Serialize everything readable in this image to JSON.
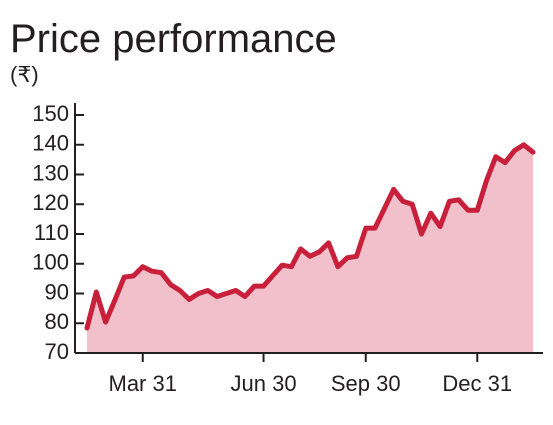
{
  "chart_data": {
    "type": "area",
    "title": "Price performance",
    "subtitle": "(₹)",
    "categories": [
      null,
      null,
      null,
      null,
      null,
      null,
      "Mar 31",
      null,
      null,
      null,
      null,
      null,
      null,
      null,
      null,
      null,
      null,
      null,
      null,
      "Jun 30",
      null,
      null,
      null,
      null,
      null,
      null,
      null,
      null,
      null,
      null,
      "Sep 30",
      null,
      null,
      null,
      null,
      null,
      null,
      null,
      null,
      null,
      null,
      null,
      "Dec 31",
      null,
      null,
      null,
      null,
      null,
      null
    ],
    "values": [
      78.4,
      90.5,
      80.4,
      87.8,
      95.5,
      95.9,
      99,
      97.5,
      97,
      93,
      91,
      88,
      90,
      91,
      89,
      90,
      91,
      89,
      92.5,
      92.5,
      96,
      99.5,
      99,
      105,
      102.5,
      104,
      107,
      99,
      102,
      102.5,
      112,
      112,
      118.5,
      125,
      121,
      120,
      110,
      117,
      112.5,
      121,
      121.5,
      118,
      118,
      128,
      136,
      134,
      138,
      140,
      137.5
    ],
    "line_color": "#c8203a",
    "fill_color": "#f2c0cb",
    "ylim": [
      70,
      150
    ],
    "yticks": [
      70,
      80,
      90,
      100,
      110,
      120,
      130,
      140,
      150
    ]
  }
}
